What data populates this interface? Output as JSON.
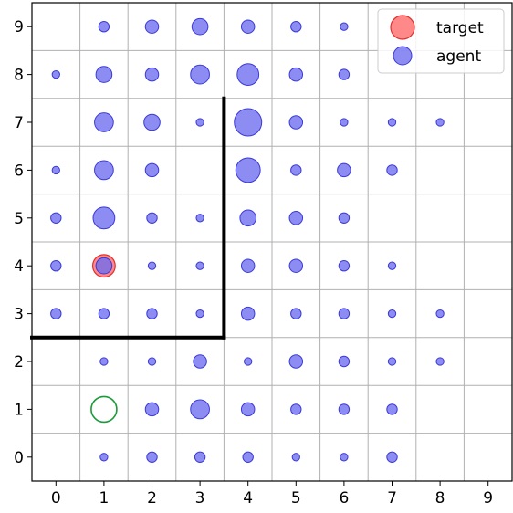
{
  "chart_data": {
    "type": "scatter",
    "title": "",
    "xlabel": "",
    "ylabel": "",
    "xlim": [
      -0.5,
      9.5
    ],
    "ylim": [
      -0.5,
      9.5
    ],
    "x_ticks": [
      "0",
      "1",
      "2",
      "3",
      "4",
      "5",
      "6",
      "7",
      "8",
      "9"
    ],
    "y_ticks": [
      "0",
      "1",
      "2",
      "3",
      "4",
      "5",
      "6",
      "7",
      "8",
      "9"
    ],
    "grid": true,
    "legend_position": "top-right",
    "colors": {
      "target_fill": "#ff6b6b",
      "target_edge": "#e03030",
      "agent_fill": "#6b6bf0",
      "agent_edge": "#3a3ad8",
      "start_ring": "#1a9a3a",
      "wall": "#000000",
      "grid": "#b0b0b0"
    },
    "series": [
      {
        "name": "target",
        "points": [
          {
            "x": 1,
            "y": 4,
            "size": 5
          }
        ]
      },
      {
        "name": "agent",
        "points": [
          {
            "x": 1,
            "y": 9,
            "size": 2
          },
          {
            "x": 2,
            "y": 9,
            "size": 3
          },
          {
            "x": 3,
            "y": 9,
            "size": 4
          },
          {
            "x": 4,
            "y": 9,
            "size": 3
          },
          {
            "x": 5,
            "y": 9,
            "size": 2
          },
          {
            "x": 6,
            "y": 9,
            "size": 1
          },
          {
            "x": 0,
            "y": 8,
            "size": 1
          },
          {
            "x": 1,
            "y": 8,
            "size": 4
          },
          {
            "x": 2,
            "y": 8,
            "size": 3
          },
          {
            "x": 3,
            "y": 8,
            "size": 5
          },
          {
            "x": 4,
            "y": 8,
            "size": 6
          },
          {
            "x": 5,
            "y": 8,
            "size": 3
          },
          {
            "x": 6,
            "y": 8,
            "size": 2
          },
          {
            "x": 1,
            "y": 7,
            "size": 5
          },
          {
            "x": 2,
            "y": 7,
            "size": 4
          },
          {
            "x": 3,
            "y": 7,
            "size": 1
          },
          {
            "x": 4,
            "y": 7,
            "size": 8
          },
          {
            "x": 5,
            "y": 7,
            "size": 3
          },
          {
            "x": 6,
            "y": 7,
            "size": 1
          },
          {
            "x": 7,
            "y": 7,
            "size": 1
          },
          {
            "x": 8,
            "y": 7,
            "size": 1
          },
          {
            "x": 0,
            "y": 6,
            "size": 1
          },
          {
            "x": 1,
            "y": 6,
            "size": 5
          },
          {
            "x": 2,
            "y": 6,
            "size": 3
          },
          {
            "x": 4,
            "y": 6,
            "size": 7
          },
          {
            "x": 5,
            "y": 6,
            "size": 2
          },
          {
            "x": 6,
            "y": 6,
            "size": 3
          },
          {
            "x": 7,
            "y": 6,
            "size": 2
          },
          {
            "x": 0,
            "y": 5,
            "size": 2
          },
          {
            "x": 1,
            "y": 5,
            "size": 6
          },
          {
            "x": 2,
            "y": 5,
            "size": 2
          },
          {
            "x": 3,
            "y": 5,
            "size": 1
          },
          {
            "x": 4,
            "y": 5,
            "size": 4
          },
          {
            "x": 5,
            "y": 5,
            "size": 3
          },
          {
            "x": 6,
            "y": 5,
            "size": 2
          },
          {
            "x": 0,
            "y": 4,
            "size": 2
          },
          {
            "x": 1,
            "y": 4,
            "size": 4
          },
          {
            "x": 2,
            "y": 4,
            "size": 1
          },
          {
            "x": 3,
            "y": 4,
            "size": 1
          },
          {
            "x": 4,
            "y": 4,
            "size": 3
          },
          {
            "x": 5,
            "y": 4,
            "size": 3
          },
          {
            "x": 6,
            "y": 4,
            "size": 2
          },
          {
            "x": 7,
            "y": 4,
            "size": 1
          },
          {
            "x": 0,
            "y": 3,
            "size": 2
          },
          {
            "x": 1,
            "y": 3,
            "size": 2
          },
          {
            "x": 2,
            "y": 3,
            "size": 2
          },
          {
            "x": 3,
            "y": 3,
            "size": 1
          },
          {
            "x": 4,
            "y": 3,
            "size": 3
          },
          {
            "x": 5,
            "y": 3,
            "size": 2
          },
          {
            "x": 6,
            "y": 3,
            "size": 2
          },
          {
            "x": 7,
            "y": 3,
            "size": 1
          },
          {
            "x": 8,
            "y": 3,
            "size": 1
          },
          {
            "x": 1,
            "y": 2,
            "size": 1
          },
          {
            "x": 2,
            "y": 2,
            "size": 1
          },
          {
            "x": 3,
            "y": 2,
            "size": 3
          },
          {
            "x": 4,
            "y": 2,
            "size": 1
          },
          {
            "x": 5,
            "y": 2,
            "size": 3
          },
          {
            "x": 6,
            "y": 2,
            "size": 2
          },
          {
            "x": 7,
            "y": 2,
            "size": 1
          },
          {
            "x": 8,
            "y": 2,
            "size": 1
          },
          {
            "x": 2,
            "y": 1,
            "size": 3
          },
          {
            "x": 3,
            "y": 1,
            "size": 5
          },
          {
            "x": 4,
            "y": 1,
            "size": 3
          },
          {
            "x": 5,
            "y": 1,
            "size": 2
          },
          {
            "x": 6,
            "y": 1,
            "size": 2
          },
          {
            "x": 7,
            "y": 1,
            "size": 2
          },
          {
            "x": 1,
            "y": 0,
            "size": 1
          },
          {
            "x": 2,
            "y": 0,
            "size": 2
          },
          {
            "x": 3,
            "y": 0,
            "size": 2
          },
          {
            "x": 4,
            "y": 0,
            "size": 2
          },
          {
            "x": 5,
            "y": 0,
            "size": 1
          },
          {
            "x": 6,
            "y": 0,
            "size": 1
          },
          {
            "x": 7,
            "y": 0,
            "size": 2
          }
        ]
      }
    ],
    "start_marker": {
      "x": 1,
      "y": 1
    },
    "walls": [
      [
        [
          -0.5,
          2.5
        ],
        [
          3.5,
          2.5
        ]
      ],
      [
        [
          3.5,
          2.5
        ],
        [
          3.5,
          7.5
        ]
      ]
    ]
  }
}
